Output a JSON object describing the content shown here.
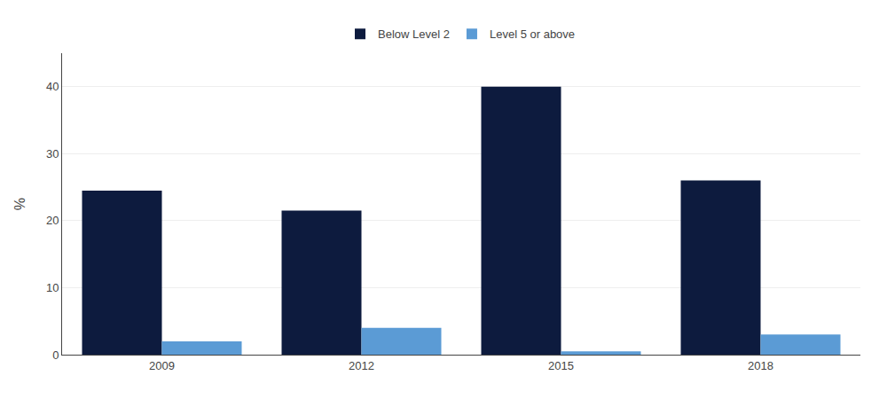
{
  "chart_data": {
    "type": "bar",
    "categories": [
      "2009",
      "2012",
      "2015",
      "2018"
    ],
    "series": [
      {
        "name": "Below Level 2",
        "color": "#0d1b3e",
        "values": [
          24.5,
          21.5,
          40.0,
          26.0
        ]
      },
      {
        "name": "Level 5 or above",
        "color": "#5b9bd5",
        "values": [
          2.0,
          4.0,
          0.5,
          3.0
        ]
      }
    ],
    "ylabel": "%",
    "ylim": [
      0,
      45
    ],
    "yticks": [
      0,
      10,
      20,
      30,
      40
    ],
    "grid": true,
    "legend": "top"
  }
}
